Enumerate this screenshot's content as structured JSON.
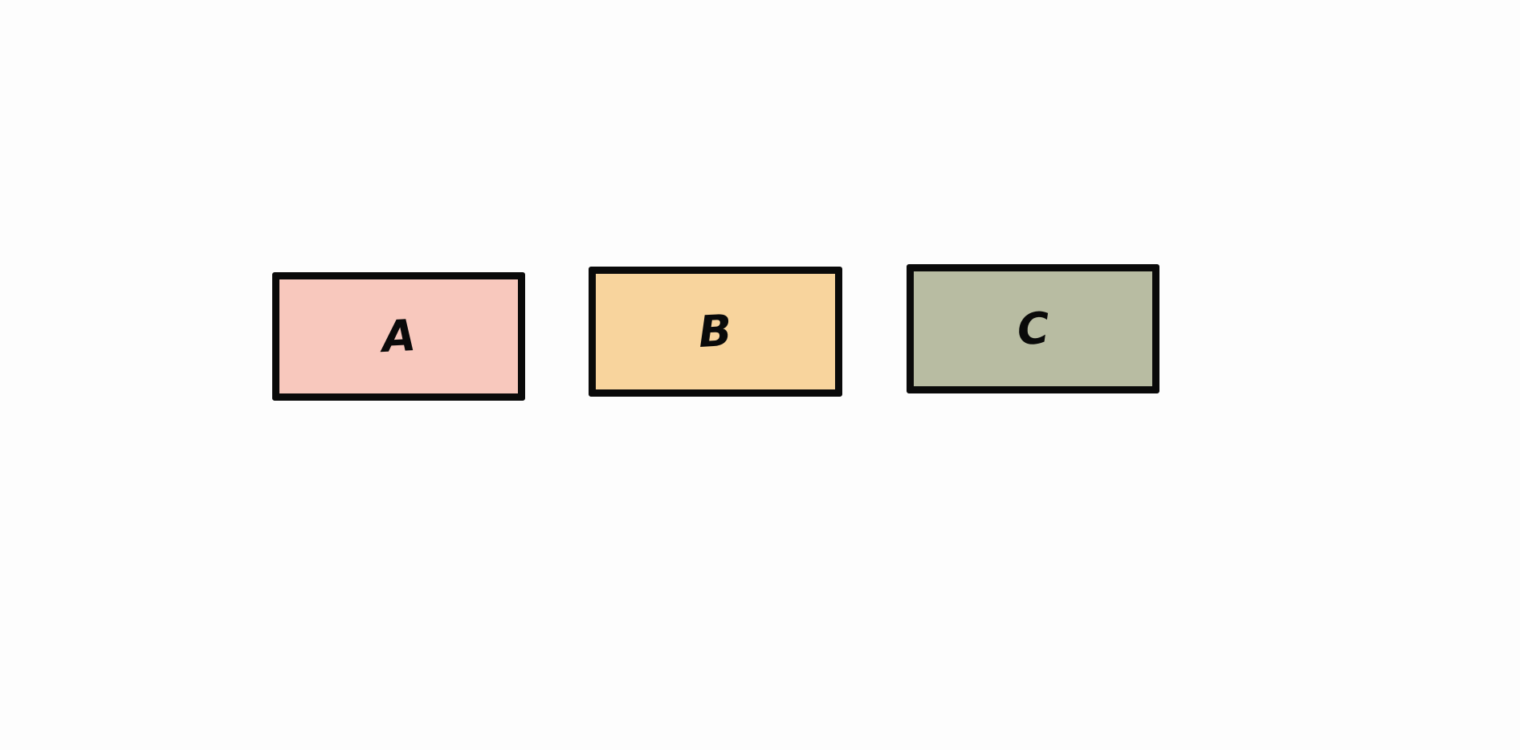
{
  "boxes": [
    {
      "label": "A",
      "fill": "#f8c8bd"
    },
    {
      "label": "B",
      "fill": "#f8d49d"
    },
    {
      "label": "C",
      "fill": "#b8bca2"
    }
  ]
}
